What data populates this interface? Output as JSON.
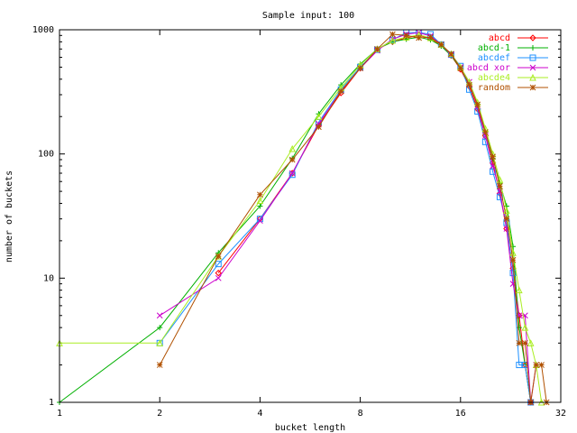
{
  "chart_data": {
    "type": "line",
    "title": "Sample input: 100",
    "xlabel": "bucket length",
    "ylabel": "number of buckets",
    "x_scale": "log2",
    "y_scale": "log10",
    "xlim": [
      1,
      32
    ],
    "ylim": [
      1,
      1000
    ],
    "x_ticks": [
      1,
      2,
      4,
      8,
      16,
      32
    ],
    "x_tick_labels": [
      "1",
      "2",
      "4",
      "8",
      "16",
      "32"
    ],
    "y_ticks": [
      1,
      10,
      100,
      1000
    ],
    "y_tick_labels": [
      "1",
      "10",
      "100",
      "1000"
    ],
    "grid": false,
    "legend_position": "top-right",
    "series": [
      {
        "name": "abcd",
        "color": "#ff0000",
        "marker": "diamond",
        "points": [
          [
            3,
            11
          ],
          [
            4,
            30
          ],
          [
            5,
            70
          ],
          [
            6,
            170
          ],
          [
            7,
            310
          ],
          [
            8,
            490
          ],
          [
            9,
            700
          ],
          [
            10,
            800
          ],
          [
            11,
            860
          ],
          [
            12,
            900
          ],
          [
            13,
            850
          ],
          [
            14,
            750
          ],
          [
            15,
            620
          ],
          [
            16,
            480
          ],
          [
            17,
            350
          ],
          [
            18,
            230
          ],
          [
            19,
            140
          ],
          [
            20,
            85
          ],
          [
            21,
            48
          ],
          [
            22,
            25
          ],
          [
            23,
            12
          ],
          [
            24,
            5
          ],
          [
            25,
            2
          ],
          [
            26,
            1
          ]
        ]
      },
      {
        "name": "abcd-1",
        "color": "#00b000",
        "marker": "plus",
        "points": [
          [
            1,
            1
          ],
          [
            2,
            4
          ],
          [
            3,
            16
          ],
          [
            4,
            38
          ],
          [
            5,
            92
          ],
          [
            6,
            210
          ],
          [
            7,
            360
          ],
          [
            8,
            530
          ],
          [
            9,
            700
          ],
          [
            10,
            800
          ],
          [
            11,
            840
          ],
          [
            12,
            870
          ],
          [
            13,
            830
          ],
          [
            14,
            740
          ],
          [
            15,
            620
          ],
          [
            16,
            490
          ],
          [
            17,
            370
          ],
          [
            18,
            250
          ],
          [
            19,
            150
          ],
          [
            20,
            92
          ],
          [
            21,
            58
          ],
          [
            22,
            38
          ],
          [
            23,
            18
          ],
          [
            24,
            4
          ],
          [
            25,
            2
          ],
          [
            26,
            1
          ]
        ]
      },
      {
        "name": "abcdef",
        "color": "#1e90ff",
        "marker": "square",
        "points": [
          [
            2,
            3
          ],
          [
            3,
            13
          ],
          [
            4,
            30
          ],
          [
            5,
            68
          ],
          [
            6,
            180
          ],
          [
            7,
            330
          ],
          [
            8,
            500
          ],
          [
            9,
            690
          ],
          [
            10,
            830
          ],
          [
            11,
            950
          ],
          [
            12,
            950
          ],
          [
            13,
            920
          ],
          [
            14,
            760
          ],
          [
            15,
            630
          ],
          [
            16,
            510
          ],
          [
            17,
            330
          ],
          [
            18,
            220
          ],
          [
            19,
            125
          ],
          [
            20,
            72
          ],
          [
            21,
            45
          ],
          [
            22,
            28
          ],
          [
            23,
            11
          ],
          [
            24,
            2
          ],
          [
            25,
            2
          ],
          [
            26,
            1
          ]
        ]
      },
      {
        "name": "abcd xor",
        "color": "#cc00cc",
        "marker": "x",
        "points": [
          [
            2,
            5
          ],
          [
            3,
            10
          ],
          [
            4,
            29
          ],
          [
            5,
            70
          ],
          [
            6,
            175
          ],
          [
            7,
            320
          ],
          [
            8,
            490
          ],
          [
            9,
            680
          ],
          [
            10,
            840
          ],
          [
            11,
            920
          ],
          [
            12,
            950
          ],
          [
            13,
            890
          ],
          [
            14,
            760
          ],
          [
            15,
            630
          ],
          [
            16,
            500
          ],
          [
            17,
            380
          ],
          [
            18,
            240
          ],
          [
            19,
            140
          ],
          [
            20,
            80
          ],
          [
            21,
            50
          ],
          [
            22,
            25
          ],
          [
            23,
            9
          ],
          [
            24,
            5
          ],
          [
            25,
            5
          ],
          [
            26,
            1
          ],
          [
            27,
            2
          ]
        ]
      },
      {
        "name": "abcde4",
        "color": "#aaee22",
        "marker": "triangle",
        "points": [
          [
            1,
            3
          ],
          [
            2,
            3
          ],
          [
            3,
            15
          ],
          [
            4,
            42
          ],
          [
            5,
            110
          ],
          [
            6,
            200
          ],
          [
            7,
            340
          ],
          [
            8,
            520
          ],
          [
            9,
            700
          ],
          [
            10,
            820
          ],
          [
            11,
            870
          ],
          [
            12,
            910
          ],
          [
            13,
            860
          ],
          [
            14,
            760
          ],
          [
            15,
            640
          ],
          [
            16,
            500
          ],
          [
            17,
            380
          ],
          [
            18,
            260
          ],
          [
            19,
            160
          ],
          [
            20,
            100
          ],
          [
            21,
            62
          ],
          [
            22,
            35
          ],
          [
            23,
            16
          ],
          [
            24,
            8
          ],
          [
            25,
            4
          ],
          [
            26,
            3
          ],
          [
            27,
            2
          ],
          [
            28,
            1
          ]
        ]
      },
      {
        "name": "random",
        "color": "#b05000",
        "marker": "star",
        "points": [
          [
            2,
            2
          ],
          [
            3,
            15
          ],
          [
            4,
            47
          ],
          [
            5,
            90
          ],
          [
            6,
            165
          ],
          [
            7,
            320
          ],
          [
            8,
            490
          ],
          [
            9,
            700
          ],
          [
            10,
            920
          ],
          [
            11,
            900
          ],
          [
            12,
            860
          ],
          [
            13,
            870
          ],
          [
            14,
            760
          ],
          [
            15,
            640
          ],
          [
            16,
            490
          ],
          [
            17,
            360
          ],
          [
            18,
            250
          ],
          [
            19,
            150
          ],
          [
            20,
            95
          ],
          [
            21,
            55
          ],
          [
            22,
            30
          ],
          [
            23,
            14
          ],
          [
            24,
            3
          ],
          [
            25,
            3
          ],
          [
            26,
            1
          ],
          [
            27,
            2
          ],
          [
            28,
            2
          ],
          [
            29,
            1
          ]
        ]
      }
    ]
  }
}
